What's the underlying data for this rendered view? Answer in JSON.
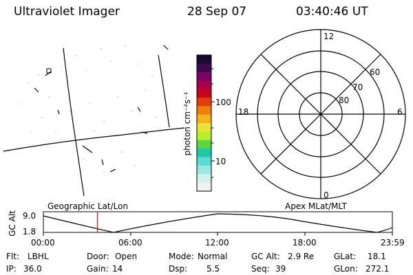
{
  "header": {
    "instrument": "Ultraviolet Imager",
    "date": "28 Sep 07",
    "time": "03:40:46 UT"
  },
  "colorbar": {
    "unit_label": "photon cm⁻²s⁻¹",
    "ticks": [
      "100",
      "10"
    ],
    "colors": [
      "#1a0830",
      "#3a0a4c",
      "#7a0064",
      "#a8004a",
      "#c80022",
      "#e03c0c",
      "#f07e0a",
      "#f6b21a",
      "#e8e23a",
      "#b8ee2a",
      "#5cd43c",
      "#20c8a8",
      "#58dcd8",
      "#9ae8e0",
      "#d2f0ec",
      "#f2f2f2"
    ]
  },
  "polar_plot": {
    "mlt_labels": [
      "12",
      "18",
      "6",
      "0"
    ],
    "mlat_labels": [
      "60",
      "70",
      "80"
    ]
  },
  "timeline": {
    "left_label": "Geographic Lat/Lon",
    "right_label": "Apex MLat/MLT",
    "axis_title": "GC Alt",
    "y_ticks": [
      "9.0",
      "1.8"
    ],
    "x_ticks": [
      "00:00",
      "06:00",
      "12:00",
      "18:00",
      "23:59"
    ],
    "marker_color": "#e02020",
    "marker_time_fraction": 0.155
  },
  "status": {
    "row1": [
      {
        "key": "Flt:",
        "value": "LBHL"
      },
      {
        "key": "Door:",
        "value": "Open"
      },
      {
        "key": "Mode:",
        "value": "Normal"
      },
      {
        "key": "GC Alt:",
        "value": "2.9 Re"
      },
      {
        "key": "GLat:",
        "value": "18.1"
      }
    ],
    "row2": [
      {
        "key": "IP:",
        "value": "36.0"
      },
      {
        "key": "Gain:",
        "value": "14"
      },
      {
        "key": "Dsp:",
        "value": "5.5"
      },
      {
        "key": "Seq:",
        "value": "39"
      },
      {
        "key": "GLon:",
        "value": "272.1"
      }
    ]
  }
}
